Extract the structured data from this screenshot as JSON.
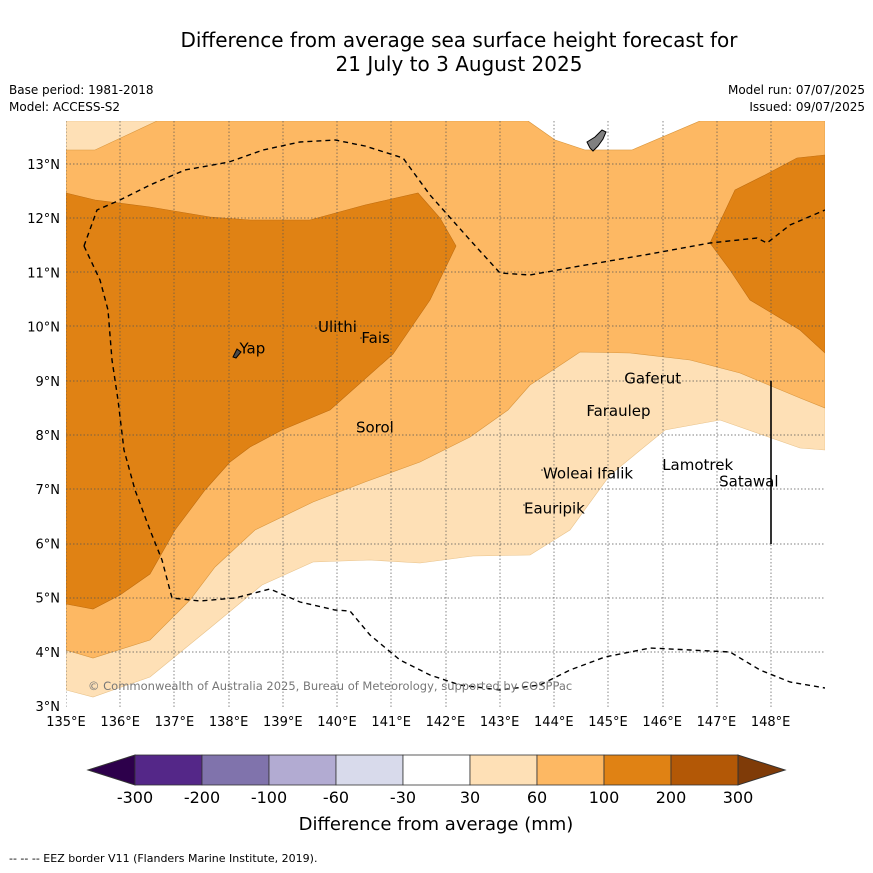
{
  "title_line1": "Difference from average sea surface height forecast for",
  "title_line2": "21 July to 3 August 2025",
  "base_period": "Base period: 1981-2018",
  "model": "Model: ACCESS-S2",
  "model_run": "Model run: 07/07/2025",
  "issued": "Issued: 09/07/2025",
  "copyright": "© Commonwealth of Australia 2025, Bureau of Meteorology, supported by COSPPac",
  "colorbar_label": "Difference from average (mm)",
  "colorbar_ticks": [
    "-300",
    "-200",
    "-100",
    "-60",
    "-30",
    "30",
    "60",
    "100",
    "200",
    "300"
  ],
  "colorbar_colors": {
    "below_min": "#2d004b",
    "bins": [
      "#542788",
      "#8073ac",
      "#b2abd2",
      "#d8daeb",
      "#ffffff",
      "#fee0b6",
      "#fdb863",
      "#e08214",
      "#b35806"
    ],
    "above_max": "#7f3b08"
  },
  "footer": "--  --  -- EEZ border V11 (Flanders Marine Institute, 2019).",
  "lon_ticks": [
    "135°E",
    "136°E",
    "137°E",
    "138°E",
    "139°E",
    "140°E",
    "141°E",
    "142°E",
    "143°E",
    "144°E",
    "145°E",
    "146°E",
    "147°E",
    "148°E"
  ],
  "lat_ticks": [
    "13°N",
    "12°N",
    "11°N",
    "10°N",
    "9°N",
    "8°N",
    "7°N",
    "6°N",
    "5°N",
    "4°N",
    "3°N"
  ],
  "places": [
    {
      "name": "Yap",
      "lon": 138.2,
      "lat": 9.5
    },
    {
      "name": "Ulithi",
      "lon": 139.65,
      "lat": 9.9
    },
    {
      "name": "Fais",
      "lon": 140.45,
      "lat": 9.7
    },
    {
      "name": "Sorol",
      "lon": 140.35,
      "lat": 8.05
    },
    {
      "name": "Gaferut",
      "lon": 145.3,
      "lat": 8.95
    },
    {
      "name": "Faraulep",
      "lon": 144.6,
      "lat": 8.35
    },
    {
      "name": "Woleai",
      "lon": 143.8,
      "lat": 7.2
    },
    {
      "name": "Ifalik",
      "lon": 144.8,
      "lat": 7.2
    },
    {
      "name": "Lamotrek",
      "lon": 146.0,
      "lat": 7.35
    },
    {
      "name": "Satawal",
      "lon": 147.05,
      "lat": 7.05
    },
    {
      "name": "Eauripik",
      "lon": 143.45,
      "lat": 6.55
    }
  ]
}
